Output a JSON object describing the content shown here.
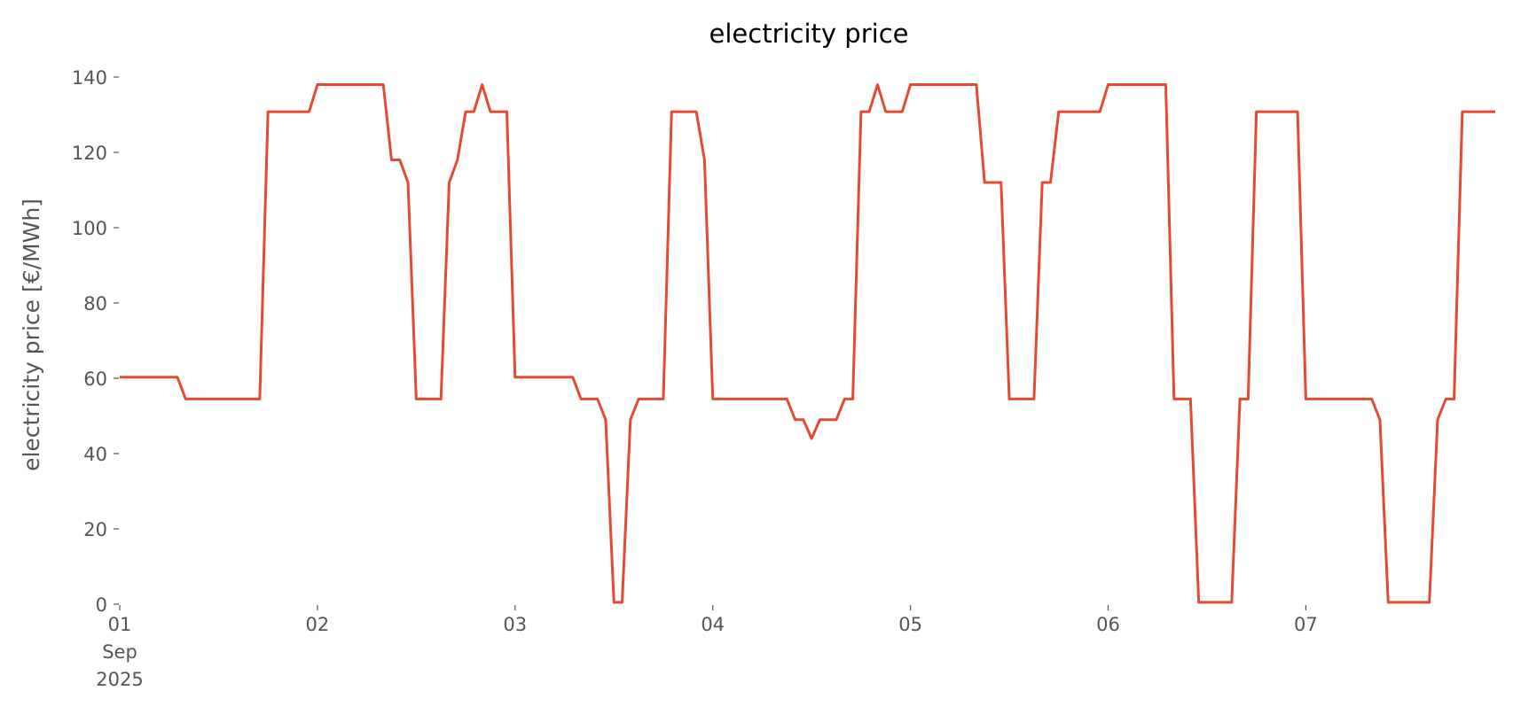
{
  "chart_data": {
    "type": "line",
    "title": "electricity price",
    "ylabel": "electricity price [€/MWh]",
    "x": [
      0,
      1,
      2,
      3,
      4,
      5,
      6,
      7,
      8,
      9,
      10,
      11,
      12,
      13,
      14,
      15,
      16,
      17,
      18,
      19,
      20,
      21,
      22,
      23,
      24,
      25,
      26,
      27,
      28,
      29,
      30,
      31,
      32,
      33,
      34,
      35,
      36,
      37,
      38,
      39,
      40,
      41,
      42,
      43,
      44,
      45,
      46,
      47,
      48,
      49,
      50,
      51,
      52,
      53,
      54,
      55,
      56,
      57,
      58,
      59,
      60,
      61,
      62,
      63,
      64,
      65,
      66,
      67,
      68,
      69,
      70,
      71,
      72,
      73,
      74,
      75,
      76,
      77,
      78,
      79,
      80,
      81,
      82,
      83,
      84,
      85,
      86,
      87,
      88,
      89,
      90,
      91,
      92,
      93,
      94,
      95,
      96,
      97,
      98,
      99,
      100,
      101,
      102,
      103,
      104,
      105,
      106,
      107,
      108,
      109,
      110,
      111,
      112,
      113,
      114,
      115,
      116,
      117,
      118,
      119,
      120,
      121,
      122,
      123,
      124,
      125,
      126,
      127,
      128,
      129,
      130,
      131,
      132,
      133,
      134,
      135,
      136,
      137,
      138,
      139,
      140,
      141,
      142,
      143,
      144,
      145,
      146,
      147,
      148,
      149,
      150,
      151,
      152,
      153,
      154,
      155,
      156,
      157,
      158,
      159,
      160,
      161,
      162,
      163,
      164,
      165,
      166,
      167
    ],
    "series": [
      {
        "name": "electricity price",
        "color": "#e24a33",
        "values": [
          60.3,
          60.3,
          60.3,
          60.3,
          60.3,
          60.3,
          60.3,
          60.3,
          54.5,
          54.5,
          54.5,
          54.5,
          54.5,
          54.5,
          54.5,
          54.5,
          54.5,
          54.5,
          130.8,
          130.8,
          130.8,
          130.8,
          130.8,
          130.8,
          138,
          138,
          138,
          138,
          138,
          138,
          138,
          138,
          138,
          118,
          118,
          112,
          54.5,
          54.5,
          54.5,
          54.5,
          112,
          118,
          130.8,
          130.8,
          138,
          130.8,
          130.8,
          130.8,
          60.3,
          60.3,
          60.3,
          60.3,
          60.3,
          60.3,
          60.3,
          60.3,
          54.5,
          54.5,
          54.5,
          49,
          0.5,
          0.5,
          49,
          54.5,
          54.5,
          54.5,
          54.5,
          130.8,
          130.8,
          130.8,
          130.8,
          118,
          54.5,
          54.5,
          54.5,
          54.5,
          54.5,
          54.5,
          54.5,
          54.5,
          54.5,
          54.5,
          49,
          49,
          44,
          49,
          49,
          49,
          54.5,
          54.5,
          130.8,
          130.8,
          138,
          130.8,
          130.8,
          130.8,
          138,
          138,
          138,
          138,
          138,
          138,
          138,
          138,
          138,
          112,
          112,
          112,
          54.5,
          54.5,
          54.5,
          54.5,
          112,
          112,
          130.8,
          130.8,
          130.8,
          130.8,
          130.8,
          130.8,
          138,
          138,
          138,
          138,
          138,
          138,
          138,
          138,
          54.5,
          54.5,
          54.5,
          0.5,
          0.5,
          0.5,
          0.5,
          0.5,
          54.5,
          54.5,
          130.8,
          130.8,
          130.8,
          130.8,
          130.8,
          130.8,
          54.5,
          54.5,
          54.5,
          54.5,
          54.5,
          54.5,
          54.5,
          54.5,
          54.5,
          49,
          0.5,
          0.5,
          0.5,
          0.5,
          0.5,
          0.5,
          49,
          54.5,
          54.5,
          130.8,
          130.8,
          130.8,
          130.8,
          130.8
        ]
      }
    ],
    "xlim": [
      0,
      167
    ],
    "xticks": [
      {
        "value": 0,
        "label": "01\nSep\n2025"
      },
      {
        "value": 24,
        "label": "02"
      },
      {
        "value": 48,
        "label": "03"
      },
      {
        "value": 72,
        "label": "04"
      },
      {
        "value": 96,
        "label": "05"
      },
      {
        "value": 120,
        "label": "06"
      },
      {
        "value": 144,
        "label": "07"
      }
    ],
    "ylim": [
      0,
      140
    ],
    "yticks": [
      0,
      20,
      40,
      60,
      80,
      100,
      120,
      140
    ],
    "grid": false
  }
}
